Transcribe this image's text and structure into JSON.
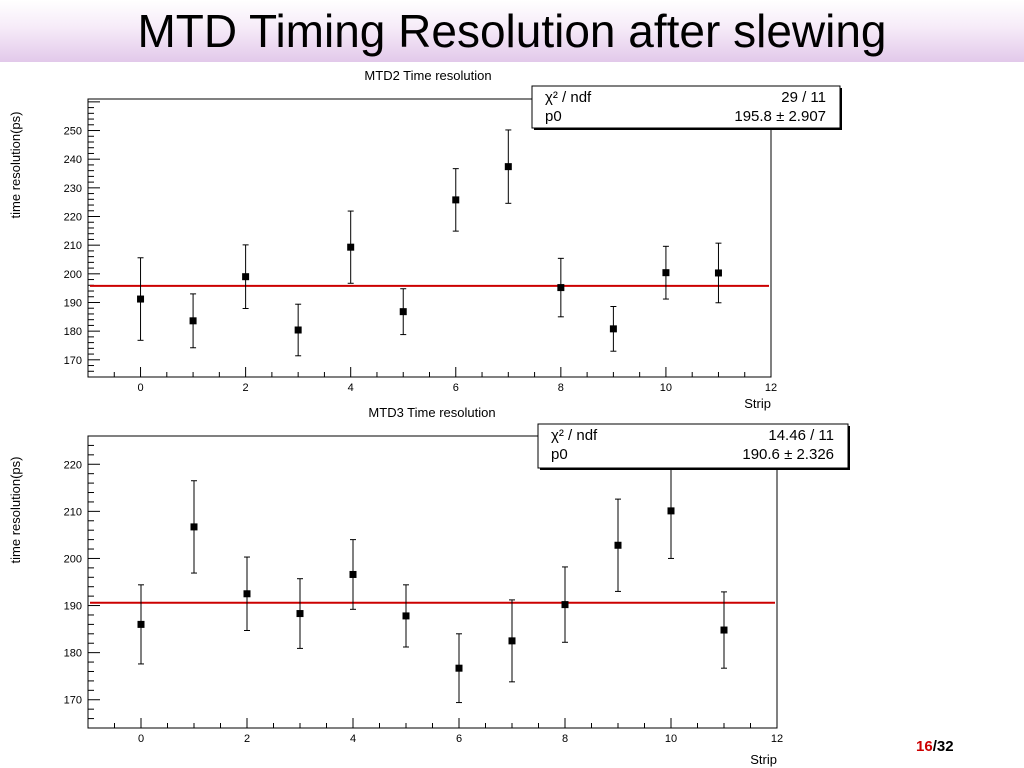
{
  "slide": {
    "title": "MTD Timing Resolution after slewing",
    "page_current": "16",
    "page_separator": "/",
    "page_total": "32"
  },
  "colors": {
    "fit_line": "#cc0000",
    "marker": "#000000",
    "title_band": "#e2c9ea",
    "page_current": "#cc0000"
  },
  "chart_data": [
    {
      "type": "scatter",
      "title": "MTD2 Time resolution",
      "xlabel": "Strip",
      "ylabel": "time resolution(ps)",
      "xlim": [
        -1,
        12
      ],
      "ylim": [
        164,
        261
      ],
      "x_ticks": [
        0,
        2,
        4,
        6,
        8,
        10,
        12
      ],
      "y_ticks": [
        170,
        180,
        190,
        200,
        210,
        220,
        230,
        240,
        250
      ],
      "grid": false,
      "series": [
        {
          "x": [
            0,
            1,
            2,
            3,
            4,
            5,
            6,
            7,
            8,
            9,
            10,
            11
          ],
          "y": [
            191.2,
            183.6,
            199.0,
            180.4,
            209.3,
            186.8,
            225.8,
            237.4,
            195.2,
            180.8,
            200.4,
            200.3
          ],
          "yerr": [
            14.4,
            9.4,
            11.1,
            9.0,
            12.6,
            8.0,
            10.9,
            12.8,
            10.2,
            7.8,
            9.2,
            10.4
          ]
        }
      ],
      "fit": {
        "y": 195.8
      },
      "stats_box": {
        "rows": [
          {
            "label": "χ² / ndf",
            "value": "29 / 11"
          },
          {
            "label": "p0",
            "value": "195.8 ± 2.907"
          }
        ]
      }
    },
    {
      "type": "scatter",
      "title": "MTD3 Time resolution",
      "xlabel": "Strip",
      "ylabel": "time resolution(ps)",
      "xlim": [
        -1,
        12
      ],
      "ylim": [
        164,
        226
      ],
      "x_ticks": [
        0,
        2,
        4,
        6,
        8,
        10,
        12
      ],
      "y_ticks": [
        170,
        180,
        190,
        200,
        210,
        220
      ],
      "grid": false,
      "series": [
        {
          "x": [
            0,
            1,
            2,
            3,
            4,
            5,
            6,
            7,
            8,
            9,
            10,
            11
          ],
          "y": [
            186.0,
            206.7,
            192.5,
            188.3,
            196.6,
            187.8,
            176.7,
            182.5,
            190.2,
            202.8,
            210.1,
            184.8
          ],
          "yerr": [
            8.4,
            9.8,
            7.8,
            7.4,
            7.4,
            6.6,
            7.3,
            8.7,
            8.0,
            9.8,
            10.1,
            8.1
          ]
        }
      ],
      "fit": {
        "y": 190.6
      },
      "stats_box": {
        "rows": [
          {
            "label": "χ² / ndf",
            "value": "14.46 / 11"
          },
          {
            "label": "p0",
            "value": "190.6 ± 2.326"
          }
        ]
      }
    }
  ]
}
